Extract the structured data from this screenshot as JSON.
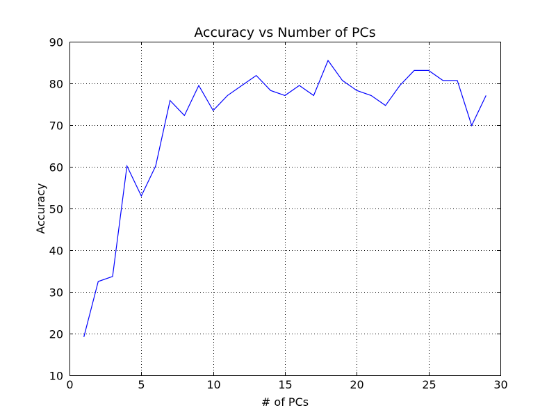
{
  "chart_data": {
    "type": "line",
    "title": "Accuracy vs Number of PCs",
    "xlabel": "# of PCs",
    "ylabel": "Accuracy",
    "xlim": [
      0,
      30
    ],
    "ylim": [
      10,
      90
    ],
    "xticks": [
      "0",
      "5",
      "10",
      "15",
      "20",
      "25",
      "30"
    ],
    "yticks": [
      "10",
      "20",
      "30",
      "40",
      "50",
      "60",
      "70",
      "80",
      "90"
    ],
    "grid": true,
    "line_color": "#0000ff",
    "series": [
      {
        "x": [
          1,
          2,
          3,
          4,
          5,
          6,
          7,
          8,
          9,
          10,
          11,
          12,
          13,
          14,
          15,
          16,
          17,
          18,
          19,
          20,
          21,
          22,
          23,
          24,
          25,
          26,
          27,
          28,
          29
        ],
        "y": [
          19.2,
          32.5,
          33.7,
          60.2,
          53.0,
          60.2,
          75.9,
          72.3,
          79.5,
          73.5,
          77.1,
          79.5,
          81.9,
          78.3,
          77.1,
          79.5,
          77.1,
          85.5,
          80.7,
          78.3,
          77.1,
          74.7,
          79.5,
          83.1,
          83.1,
          80.7,
          80.7,
          69.9,
          77.1
        ]
      }
    ]
  }
}
